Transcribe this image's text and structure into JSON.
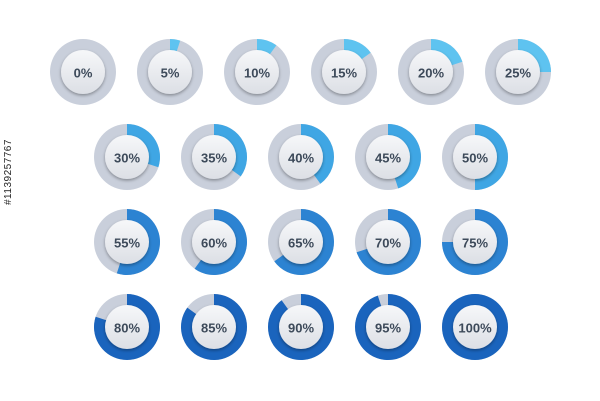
{
  "colors": {
    "track": "#c9cfdb",
    "disc_top": "#f6f7f9",
    "disc_bottom": "#dcdfe5",
    "label": "#3d4a5a"
  },
  "rows": [
    {
      "accent": "#5ec3f0",
      "items": [
        {
          "label": "0%",
          "value": 0
        },
        {
          "label": "5%",
          "value": 5
        },
        {
          "label": "10%",
          "value": 10
        },
        {
          "label": "15%",
          "value": 15
        },
        {
          "label": "20%",
          "value": 20
        },
        {
          "label": "25%",
          "value": 25
        }
      ]
    },
    {
      "accent": "#3fa6e4",
      "items": [
        {
          "label": "30%",
          "value": 30
        },
        {
          "label": "35%",
          "value": 35
        },
        {
          "label": "40%",
          "value": 40
        },
        {
          "label": "45%",
          "value": 45
        },
        {
          "label": "50%",
          "value": 50
        }
      ]
    },
    {
      "accent": "#2c83d2",
      "items": [
        {
          "label": "55%",
          "value": 55
        },
        {
          "label": "60%",
          "value": 60
        },
        {
          "label": "65%",
          "value": 65
        },
        {
          "label": "70%",
          "value": 70
        },
        {
          "label": "75%",
          "value": 75
        }
      ]
    },
    {
      "accent": "#1a64bd",
      "items": [
        {
          "label": "80%",
          "value": 80
        },
        {
          "label": "85%",
          "value": 85
        },
        {
          "label": "90%",
          "value": 90
        },
        {
          "label": "95%",
          "value": 95
        },
        {
          "label": "100%",
          "value": 100
        }
      ]
    }
  ],
  "stock_id": "#1139257767"
}
